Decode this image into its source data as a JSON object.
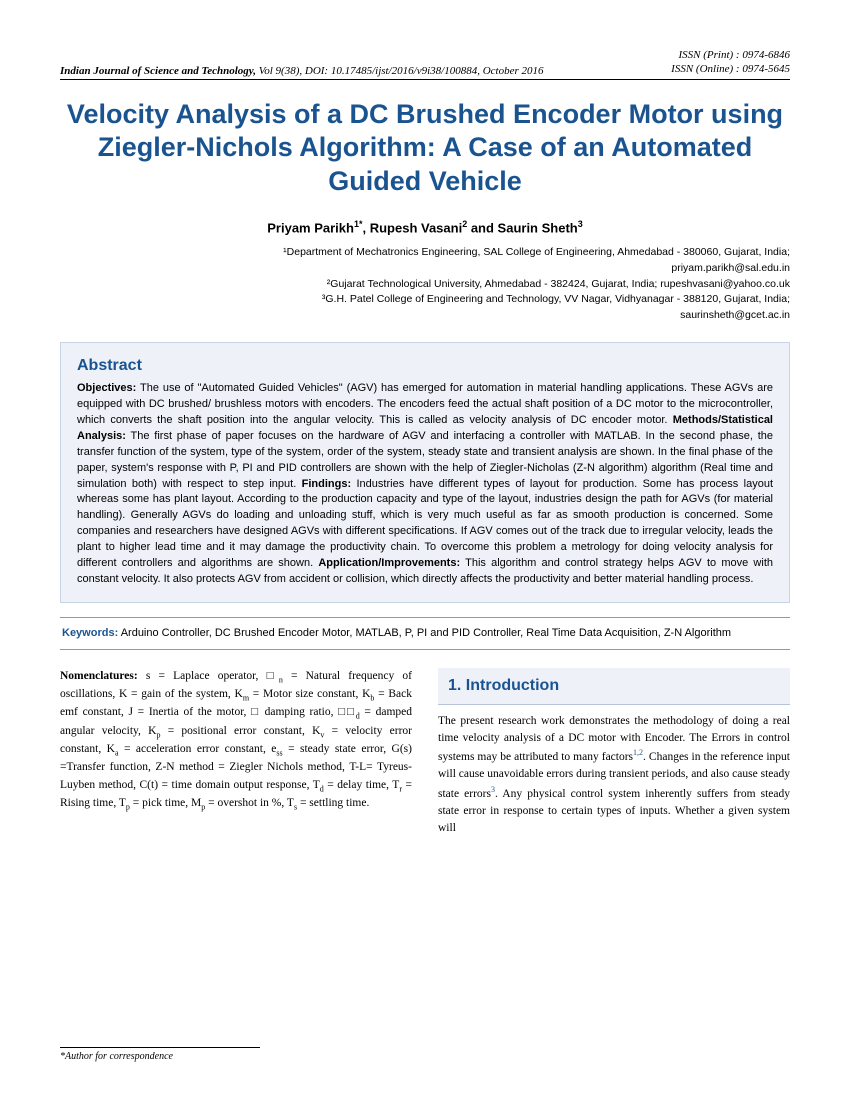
{
  "header": {
    "journal_name": "Indian Journal of Science and Technology,",
    "journal_details": " Vol 9(38), DOI: 10.17485/ijst/2016/v9i38/100884, October 2016",
    "issn_print": "ISSN (Print) : 0974-6846",
    "issn_online": "ISSN (Online) : 0974-5645"
  },
  "title": "Velocity Analysis of a DC Brushed Encoder Motor using Ziegler-Nichols Algorithm: A Case of an Automated Guided Vehicle",
  "authors_html": "Priyam Parikh<sup>1*</sup>, Rupesh Vasani<sup>2</sup> and Saurin Sheth<sup>3</sup>",
  "affiliations": [
    "¹Department of Mechatronics Engineering, SAL College of Engineering, Ahmedabad - 380060, Gujarat, India;",
    "priyam.parikh@sal.edu.in",
    "²Gujarat Technological University, Ahmedabad - 382424, Gujarat, India; rupeshvasani@yahoo.co.uk",
    "³G.H. Patel College of Engineering and Technology, VV Nagar, Vidhyanagar - 388120, Gujarat, India;",
    "saurinsheth@gcet.ac.in"
  ],
  "abstract": {
    "heading": "Abstract",
    "objectives_label": "Objectives:",
    "objectives": " The use of \"Automated Guided Vehicles\" (AGV) has emerged for automation in material handling applications. These AGVs are equipped with DC brushed/ brushless motors with encoders. The encoders feed the actual shaft position of a DC motor to the microcontroller, which converts the shaft position into the angular velocity. This is called as velocity analysis of DC encoder motor. ",
    "methods_label": "Methods/Statistical Analysis:",
    "methods": " The first phase of paper focuses on the hardware of AGV and interfacing a controller with MATLAB. In the second phase, the transfer function of the system, type of the system, order of the system, steady state and transient analysis are shown. In the final phase of the paper, system's response with P, PI and PID controllers are shown with the help of Ziegler-Nicholas (Z-N algorithm) algorithm (Real time and simulation both) with respect to step input. ",
    "findings_label": "Findings:",
    "findings": " Industries have different types of layout for production. Some has process layout whereas some has plant layout. According to the production capacity and type of the layout, industries design the path for AGVs (for material handling). Generally AGVs do loading and unloading stuff, which is very much useful as far as smooth production is concerned. Some companies and researchers have designed AGVs with different specifications. If AGV comes out of the track due to irregular velocity, leads the plant to higher lead time and it may damage the productivity chain. To overcome this problem a metrology for doing velocity analysis for different controllers and algorithms are shown. ",
    "app_label": "Application/Improvements:",
    "app": " This algorithm and control strategy helps AGV to move with constant velocity. It also protects AGV from accident or collision, which directly affects the productivity and better material handling process."
  },
  "keywords": {
    "label": "Keywords:",
    "text": " Arduino Controller, DC Brushed Encoder Motor, MATLAB, P, PI and PID Controller, Real Time Data Acquisition, Z-N Algorithm"
  },
  "nomenclatures": {
    "label": "Nomenclatures:",
    "text_html": " s = Laplace operator, □<span class=\"sub\">n</span> = Natural frequency of oscillations, K = gain of the system, K<span class=\"sub\">m</span> = Motor size constant, K<span class=\"sub\">b</span> = Back emf constant, J = Inertia of the motor, □ damping ratio, □□<span class=\"sub\">d</span> = damped angular velocity, K<span class=\"sub\">p</span> = positional error constant, K<span class=\"sub\">v</span> = velocity error constant, K<span class=\"sub\">a</span> = acceleration error constant, e<span class=\"sub\">ss</span> = steady state error, G(s) =Transfer function, Z-N method = Ziegler Nichols method, T-L= Tyreus-Luyben method, C(t) = time domain output response, T<span class=\"sub\">d</span> = delay time, T<span class=\"sub\">r</span> = Rising time, T<span class=\"sub\">p</span> = pick time, M<span class=\"sub\">p</span> = overshot in %, T<span class=\"sub\">s</span> = settling time."
  },
  "intro": {
    "heading": "1.  Introduction",
    "text_html": "The present research work demonstrates the methodology of doing a real time velocity analysis of a DC motor with Encoder. The Errors in control systems may be attributed to many factors<span class=\"cite-sup\">1,2</span>. Changes in the reference input will cause unavoidable errors during transient periods, and also cause steady state errors<span class=\"cite-sup\">3</span>. Any physical control system inherently suffers from steady state error in response to certain types of inputs. Whether a given system will"
  },
  "footer": "*Author for correspondence",
  "colors": {
    "heading_blue": "#1a5490",
    "abstract_bg": "#eef2f8",
    "abstract_border": "#c8d3e4"
  }
}
